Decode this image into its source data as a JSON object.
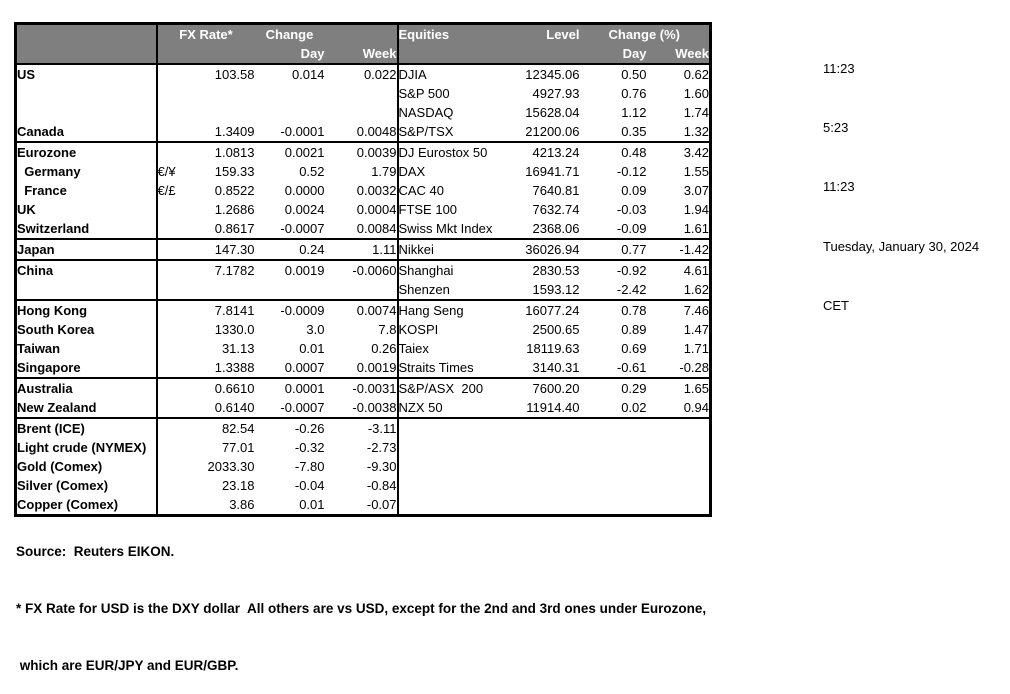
{
  "meta": {
    "times": [
      "11:23",
      "5:23",
      "11:23"
    ],
    "date": "Tuesday, January 30, 2024",
    "timezone": "CET"
  },
  "table": {
    "headers": {
      "fx_rate": "FX Rate*",
      "change": "Change",
      "day": "Day",
      "week": "Week",
      "equities": "Equities",
      "level": "Level",
      "change_pct": "Change (%)"
    },
    "groups": [
      {
        "name": "us-canada",
        "rows": [
          {
            "country": "US",
            "pair": "",
            "rate": "103.58",
            "day": "0.014",
            "week": "0.022",
            "equity": "DJIA",
            "level": "12345.06",
            "eq_day": "0.50",
            "eq_week": "0.62"
          },
          {
            "country": "",
            "pair": "",
            "rate": "",
            "day": "",
            "week": "",
            "equity": "S&P 500",
            "level": "4927.93",
            "eq_day": "0.76",
            "eq_week": "1.60"
          },
          {
            "country": "",
            "pair": "",
            "rate": "",
            "day": "",
            "week": "",
            "equity": "NASDAQ",
            "level": "15628.04",
            "eq_day": "1.12",
            "eq_week": "1.74"
          },
          {
            "country": "Canada",
            "pair": "",
            "rate": "1.3409",
            "day": "-0.0001",
            "week": "0.0048",
            "equity": "S&P/TSX",
            "level": "21200.06",
            "eq_day": "0.35",
            "eq_week": "1.32"
          }
        ]
      },
      {
        "name": "europe",
        "rows": [
          {
            "country": "Eurozone",
            "pair": "",
            "rate": "1.0813",
            "day": "0.0021",
            "week": "0.0039",
            "equity": "DJ Eurostox 50",
            "level": "4213.24",
            "eq_day": "0.48",
            "eq_week": "3.42"
          },
          {
            "country": "  Germany",
            "pair": "€/¥",
            "rate": "159.33",
            "day": "0.52",
            "week": "1.79",
            "equity": "DAX",
            "level": "16941.71",
            "eq_day": "-0.12",
            "eq_week": "1.55"
          },
          {
            "country": "  France",
            "pair": "€/£",
            "rate": "0.8522",
            "day": "0.0000",
            "week": "0.0032",
            "equity": "CAC 40",
            "level": "7640.81",
            "eq_day": "0.09",
            "eq_week": "3.07"
          },
          {
            "country": "UK",
            "pair": "",
            "rate": "1.2686",
            "day": "0.0024",
            "week": "0.0004",
            "equity": "FTSE 100",
            "level": "7632.74",
            "eq_day": "-0.03",
            "eq_week": "1.94"
          },
          {
            "country": "Switzerland",
            "pair": "",
            "rate": "0.8617",
            "day": "-0.0007",
            "week": "0.0084",
            "equity": "Swiss Mkt Index",
            "level": "2368.06",
            "eq_day": "-0.09",
            "eq_week": "1.61"
          }
        ]
      },
      {
        "name": "japan",
        "rows": [
          {
            "country": "Japan",
            "pair": "",
            "rate": "147.30",
            "day": "0.24",
            "week": "1.11",
            "equity": "Nikkei",
            "level": "36026.94",
            "eq_day": "0.77",
            "eq_week": "-1.42"
          }
        ]
      },
      {
        "name": "china",
        "rows": [
          {
            "country": "China",
            "pair": "",
            "rate": "7.1782",
            "day": "0.0019",
            "week": "-0.0060",
            "equity": "Shanghai",
            "level": "2830.53",
            "eq_day": "-0.92",
            "eq_week": "4.61"
          },
          {
            "country": "",
            "pair": "",
            "rate": "",
            "day": "",
            "week": "",
            "equity": "Shenzen",
            "level": "1593.12",
            "eq_day": "-2.42",
            "eq_week": "1.62"
          }
        ]
      },
      {
        "name": "asia-pacific",
        "rows": [
          {
            "country": "Hong Kong",
            "pair": "",
            "rate": "7.8141",
            "day": "-0.0009",
            "week": "0.0074",
            "equity": "Hang Seng",
            "level": "16077.24",
            "eq_day": "0.78",
            "eq_week": "7.46"
          },
          {
            "country": "South Korea",
            "pair": "",
            "rate": "1330.0",
            "day": "3.0",
            "week": "7.8",
            "equity": "KOSPI",
            "level": "2500.65",
            "eq_day": "0.89",
            "eq_week": "1.47"
          },
          {
            "country": "Taiwan",
            "pair": "",
            "rate": "31.13",
            "day": "0.01",
            "week": "0.26",
            "equity": "Taiex",
            "level": "18119.63",
            "eq_day": "0.69",
            "eq_week": "1.71"
          },
          {
            "country": "Singapore",
            "pair": "",
            "rate": "1.3388",
            "day": "0.0007",
            "week": "0.0019",
            "equity": "Straits Times",
            "level": "3140.31",
            "eq_day": "-0.61",
            "eq_week": "-0.28"
          }
        ]
      },
      {
        "name": "oceania",
        "rows": [
          {
            "country": "Australia",
            "pair": "",
            "rate": "0.6610",
            "day": "0.0001",
            "week": "-0.0031",
            "equity": "S&P/ASX  200",
            "level": "7600.20",
            "eq_day": "0.29",
            "eq_week": "1.65"
          },
          {
            "country": "New Zealand",
            "pair": "",
            "rate": "0.6140",
            "day": "-0.0007",
            "week": "-0.0038",
            "equity": "NZX 50",
            "level": "11914.40",
            "eq_day": "0.02",
            "eq_week": "0.94"
          }
        ]
      },
      {
        "name": "commodities",
        "rows": [
          {
            "country": "Brent (ICE)",
            "pair": "",
            "rate": "82.54",
            "day": "-0.26",
            "week": "-3.11",
            "equity": "",
            "level": "",
            "eq_day": "",
            "eq_week": ""
          },
          {
            "country": "Light crude (NYMEX)",
            "pair": "",
            "rate": "77.01",
            "day": "-0.32",
            "week": "-2.73",
            "equity": "",
            "level": "",
            "eq_day": "",
            "eq_week": ""
          },
          {
            "country": "Gold (Comex)",
            "pair": "",
            "rate": "2033.30",
            "day": "-7.80",
            "week": "-9.30",
            "equity": "",
            "level": "",
            "eq_day": "",
            "eq_week": ""
          },
          {
            "country": "Silver (Comex)",
            "pair": "",
            "rate": "23.18",
            "day": "-0.04",
            "week": "-0.84",
            "equity": "",
            "level": "",
            "eq_day": "",
            "eq_week": ""
          },
          {
            "country": "Copper (Comex)",
            "pair": "",
            "rate": "3.86",
            "day": "0.01",
            "week": "-0.07",
            "equity": "",
            "level": "",
            "eq_day": "",
            "eq_week": ""
          }
        ]
      }
    ]
  },
  "footer": {
    "source": "Source:  Reuters EIKON.",
    "note1": "* FX Rate for USD is the DXY dollar  All others are vs USD, except for the 2nd and 3rd ones under Eurozone,",
    "note2": " which are EUR/JPY and EUR/GBP."
  },
  "colors": {
    "header_bg": "#7F7F7F",
    "header_text": "#FFFFFF",
    "border": "#000000",
    "text": "#000000",
    "background": "#FFFFFF"
  }
}
